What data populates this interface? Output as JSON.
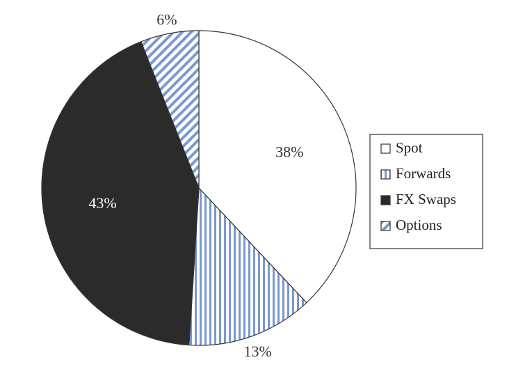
{
  "chart_data": {
    "type": "pie",
    "title": "",
    "start": "12 o'clock",
    "direction": "clockwise",
    "slices": [
      {
        "name": "Spot",
        "value": 38,
        "label": "38%",
        "pattern": "none",
        "fill": "#ffffff",
        "stripe": "",
        "label_color": "#333333"
      },
      {
        "name": "Forwards",
        "value": 13,
        "label": "13%",
        "pattern": "vertical-stripes",
        "fill": "#ffffff",
        "stripe": "#7b98cf",
        "label_color": "#333333"
      },
      {
        "name": "FX Swaps",
        "value": 43,
        "label": "43%",
        "pattern": "solid",
        "fill": "#2b2b2b",
        "stripe": "",
        "label_color": "#ffffff"
      },
      {
        "name": "Options",
        "value": 6,
        "label": "6%",
        "pattern": "diagonal-stripes",
        "fill": "#ffffff",
        "stripe": "#7b98cf",
        "label_color": "#333333"
      }
    ],
    "legend_position": "right"
  },
  "colors": {
    "outline": "#333333",
    "stripe_blue": "#7b98cf",
    "dark": "#2b2b2b"
  }
}
